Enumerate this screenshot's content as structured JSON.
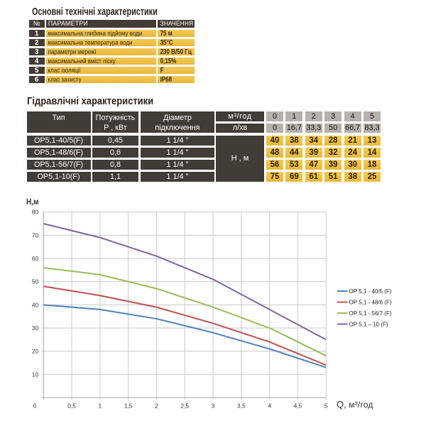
{
  "colors": {
    "accent_yellow": "#EFC14B",
    "dark_cell": "#423C36",
    "gray_cell": "#B5B2AE",
    "grid": "#C9C9C9",
    "axis": "#A0A0A0"
  },
  "section1": {
    "title": "Основні технічні характеристики",
    "table": {
      "headers": {
        "num": "№",
        "param": "ПАРАМЕТРИ",
        "value": "ЗНАЧЕННЯ"
      },
      "rows": [
        {
          "num": "1",
          "param": "максимальна глибина підйому води",
          "value": "75 м"
        },
        {
          "num": "2",
          "param": "максимальна температура води",
          "value": "35°С"
        },
        {
          "num": "3",
          "param": "параметри мережі",
          "value": "230 В/50 Гц"
        },
        {
          "num": "4",
          "param": "максимальний вміст піску",
          "value": "0,15%"
        },
        {
          "num": "5",
          "param": "клас ізоляції",
          "value": "F"
        },
        {
          "num": "6",
          "param": "клас захисту",
          "value": "IP68"
        }
      ]
    }
  },
  "section2": {
    "title": "Гідравлічні характеристики",
    "table": {
      "col_type": "Тип",
      "col_power_line1": "Потужність",
      "col_power_line2": "Р , кВт",
      "col_diam_line1": "Діаметр",
      "col_diam_line2": "підключення",
      "flow_m3_label": "м³/год",
      "flow_lmin_label": "л/хв",
      "flow_m3_values": [
        "0",
        "1",
        "2",
        "3",
        "4",
        "5"
      ],
      "flow_lmin_values": [
        "0",
        "16,7",
        "33,3",
        "50",
        "66,7",
        "83,3"
      ],
      "head_label": "Н , м",
      "rows": [
        {
          "type": "ОР5,1-40/5(F)",
          "power": "0,45",
          "diameter": "1 1/4 \"",
          "values": [
            "40",
            "38",
            "34",
            "28",
            "21",
            "13"
          ]
        },
        {
          "type": "ОР5,1-48/6(F)",
          "power": "0,6",
          "diameter": "1 1/4 \"",
          "values": [
            "48",
            "44",
            "39",
            "32",
            "24",
            "14"
          ]
        },
        {
          "type": "ОР5,1-56/7(F)",
          "power": "0,8",
          "diameter": "1 1/4 \"",
          "values": [
            "56",
            "53",
            "47",
            "39",
            "30",
            "18"
          ]
        },
        {
          "type": "ОР5,1-10(F)",
          "power": "1,1",
          "diameter": "1 1/4 \"",
          "values": [
            "75",
            "69",
            "61",
            "51",
            "38",
            "25"
          ]
        }
      ]
    }
  },
  "chart_data": {
    "type": "line",
    "xlabel_main": "Q,",
    "xlabel_unit": " м³/год",
    "ylabel": "Н,м",
    "x": [
      0,
      1,
      2,
      3,
      4,
      5
    ],
    "series": [
      {
        "name": "ОР 5,1 - 40/5 (F)",
        "color": "#4F81BD",
        "values": [
          40,
          38,
          34,
          28,
          21,
          13
        ]
      },
      {
        "name": "ОР 5,1 - 48/6 (F)",
        "color": "#C0504D",
        "values": [
          48,
          44,
          39,
          32,
          24,
          14
        ]
      },
      {
        "name": "ОР 5,1 - 56/7 (F)",
        "color": "#9BBB59",
        "values": [
          56,
          53,
          47,
          39,
          30,
          18
        ]
      },
      {
        "name": "ОР 5,1 – 10 (F)",
        "color": "#8064A2",
        "values": [
          75,
          69,
          61,
          51,
          38,
          25
        ]
      }
    ],
    "xlim": [
      0,
      5
    ],
    "ylim": [
      0,
      80
    ],
    "x_tick_step": 0.5,
    "y_tick_step": 10,
    "x_tick_labels": [
      "0",
      "0,5",
      "1",
      "1,5",
      "2",
      "2,5",
      "3",
      "3,5",
      "4",
      "4,5",
      "5"
    ],
    "y_tick_labels": [
      "0",
      "10",
      "20",
      "30",
      "40",
      "50",
      "60",
      "70",
      "80"
    ],
    "grid": true,
    "legend_position": "right"
  }
}
